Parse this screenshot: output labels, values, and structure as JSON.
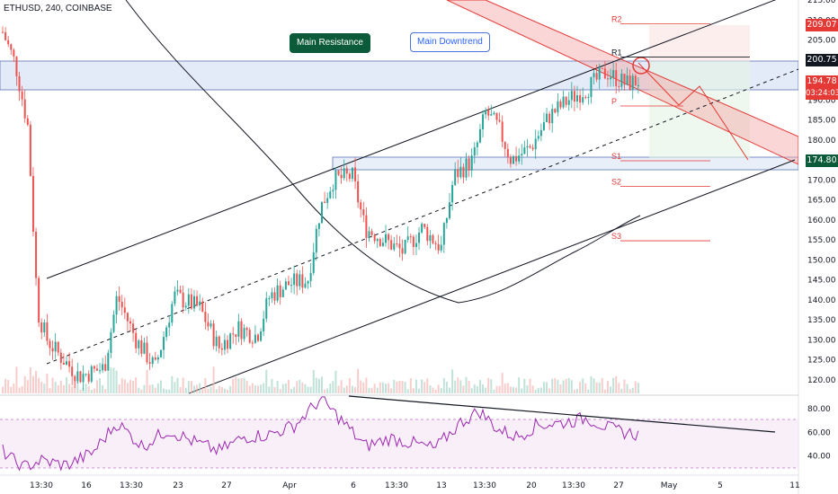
{
  "chart_title": "ETHUSD, 240, COINBASE",
  "callouts": {
    "main_resistance": "Main Resistance",
    "main_downtrend": "Main Downtrend"
  },
  "price_tags": {
    "r2": "209.07",
    "r1": "200.75",
    "last": "194.78",
    "countdown": "03:24:03",
    "s1": "174.80"
  },
  "colors": {
    "candle_up": "#26a69a",
    "candle_down": "#ef5350",
    "rsi_line": "#9c27b0",
    "resistance_zone": "#dbe4f5",
    "downtrend_channel": "#f28b8b"
  },
  "chart_data": {
    "type": "candlestick",
    "title": "ETHUSD, 240, COINBASE",
    "price_axis": {
      "ticks": [
        "215.00",
        "210.00",
        "205.00",
        "200.00",
        "195.00",
        "190.00",
        "185.00",
        "180.00",
        "175.00",
        "170.00",
        "165.00",
        "160.00",
        "155.00",
        "150.00",
        "145.00",
        "140.00",
        "135.00",
        "130.00",
        "125.00",
        "120.00"
      ],
      "range": [
        117,
        215
      ]
    },
    "time_axis": {
      "ticks": [
        "13:30",
        "16",
        "13:30",
        "23",
        "27",
        "Apr",
        "6",
        "13:30",
        "13",
        "13:30",
        "20",
        "13:30",
        "27",
        "May",
        "5",
        "11"
      ]
    },
    "rsi_axis": {
      "ticks": [
        "80.00",
        "60.00",
        "40.00"
      ],
      "range": [
        25,
        95
      ]
    },
    "pivot_levels": [
      {
        "label": "R2",
        "value": 209.07
      },
      {
        "label": "R1",
        "value": 200.75
      },
      {
        "label": "P",
        "value": 188.5
      },
      {
        "label": "S1",
        "value": 174.8
      },
      {
        "label": "S2",
        "value": 168.4
      },
      {
        "label": "S3",
        "value": 154.8
      }
    ],
    "close_path": [
      {
        "t": 0,
        "c": 207
      },
      {
        "t": 0.02,
        "c": 199
      },
      {
        "t": 0.04,
        "c": 183
      },
      {
        "t": 0.055,
        "c": 137
      },
      {
        "t": 0.07,
        "c": 130
      },
      {
        "t": 0.09,
        "c": 126
      },
      {
        "t": 0.12,
        "c": 121
      },
      {
        "t": 0.16,
        "c": 123
      },
      {
        "t": 0.18,
        "c": 141
      },
      {
        "t": 0.21,
        "c": 130
      },
      {
        "t": 0.24,
        "c": 123
      },
      {
        "t": 0.27,
        "c": 141
      },
      {
        "t": 0.31,
        "c": 138
      },
      {
        "t": 0.34,
        "c": 128
      },
      {
        "t": 0.37,
        "c": 133
      },
      {
        "t": 0.4,
        "c": 131
      },
      {
        "t": 0.42,
        "c": 141
      },
      {
        "t": 0.45,
        "c": 144
      },
      {
        "t": 0.48,
        "c": 145
      },
      {
        "t": 0.5,
        "c": 163
      },
      {
        "t": 0.52,
        "c": 170
      },
      {
        "t": 0.55,
        "c": 171
      },
      {
        "t": 0.57,
        "c": 158
      },
      {
        "t": 0.6,
        "c": 155
      },
      {
        "t": 0.63,
        "c": 152
      },
      {
        "t": 0.66,
        "c": 158
      },
      {
        "t": 0.69,
        "c": 153
      },
      {
        "t": 0.71,
        "c": 171
      },
      {
        "t": 0.74,
        "c": 175
      },
      {
        "t": 0.76,
        "c": 187
      },
      {
        "t": 0.78,
        "c": 183
      },
      {
        "t": 0.8,
        "c": 175
      },
      {
        "t": 0.83,
        "c": 178
      },
      {
        "t": 0.86,
        "c": 186
      },
      {
        "t": 0.89,
        "c": 190
      },
      {
        "t": 0.92,
        "c": 193
      },
      {
        "t": 0.95,
        "c": 197
      },
      {
        "t": 0.98,
        "c": 194
      },
      {
        "t": 1,
        "c": 194.8
      }
    ],
    "rsi_path": [
      {
        "t": 0,
        "v": 44
      },
      {
        "t": 0.03,
        "v": 30
      },
      {
        "t": 0.06,
        "v": 36
      },
      {
        "t": 0.1,
        "v": 32
      },
      {
        "t": 0.14,
        "v": 42
      },
      {
        "t": 0.18,
        "v": 68
      },
      {
        "t": 0.22,
        "v": 48
      },
      {
        "t": 0.26,
        "v": 62
      },
      {
        "t": 0.3,
        "v": 52
      },
      {
        "t": 0.34,
        "v": 44
      },
      {
        "t": 0.38,
        "v": 56
      },
      {
        "t": 0.42,
        "v": 58
      },
      {
        "t": 0.46,
        "v": 66
      },
      {
        "t": 0.5,
        "v": 88
      },
      {
        "t": 0.53,
        "v": 72
      },
      {
        "t": 0.57,
        "v": 48
      },
      {
        "t": 0.61,
        "v": 55
      },
      {
        "t": 0.65,
        "v": 50
      },
      {
        "t": 0.68,
        "v": 46
      },
      {
        "t": 0.72,
        "v": 68
      },
      {
        "t": 0.75,
        "v": 78
      },
      {
        "t": 0.78,
        "v": 62
      },
      {
        "t": 0.81,
        "v": 56
      },
      {
        "t": 0.84,
        "v": 66
      },
      {
        "t": 0.88,
        "v": 68
      },
      {
        "t": 0.92,
        "v": 72
      },
      {
        "t": 0.96,
        "v": 62
      },
      {
        "t": 1,
        "v": 58
      }
    ],
    "volume_level": [
      0.25,
      0.6
    ]
  }
}
